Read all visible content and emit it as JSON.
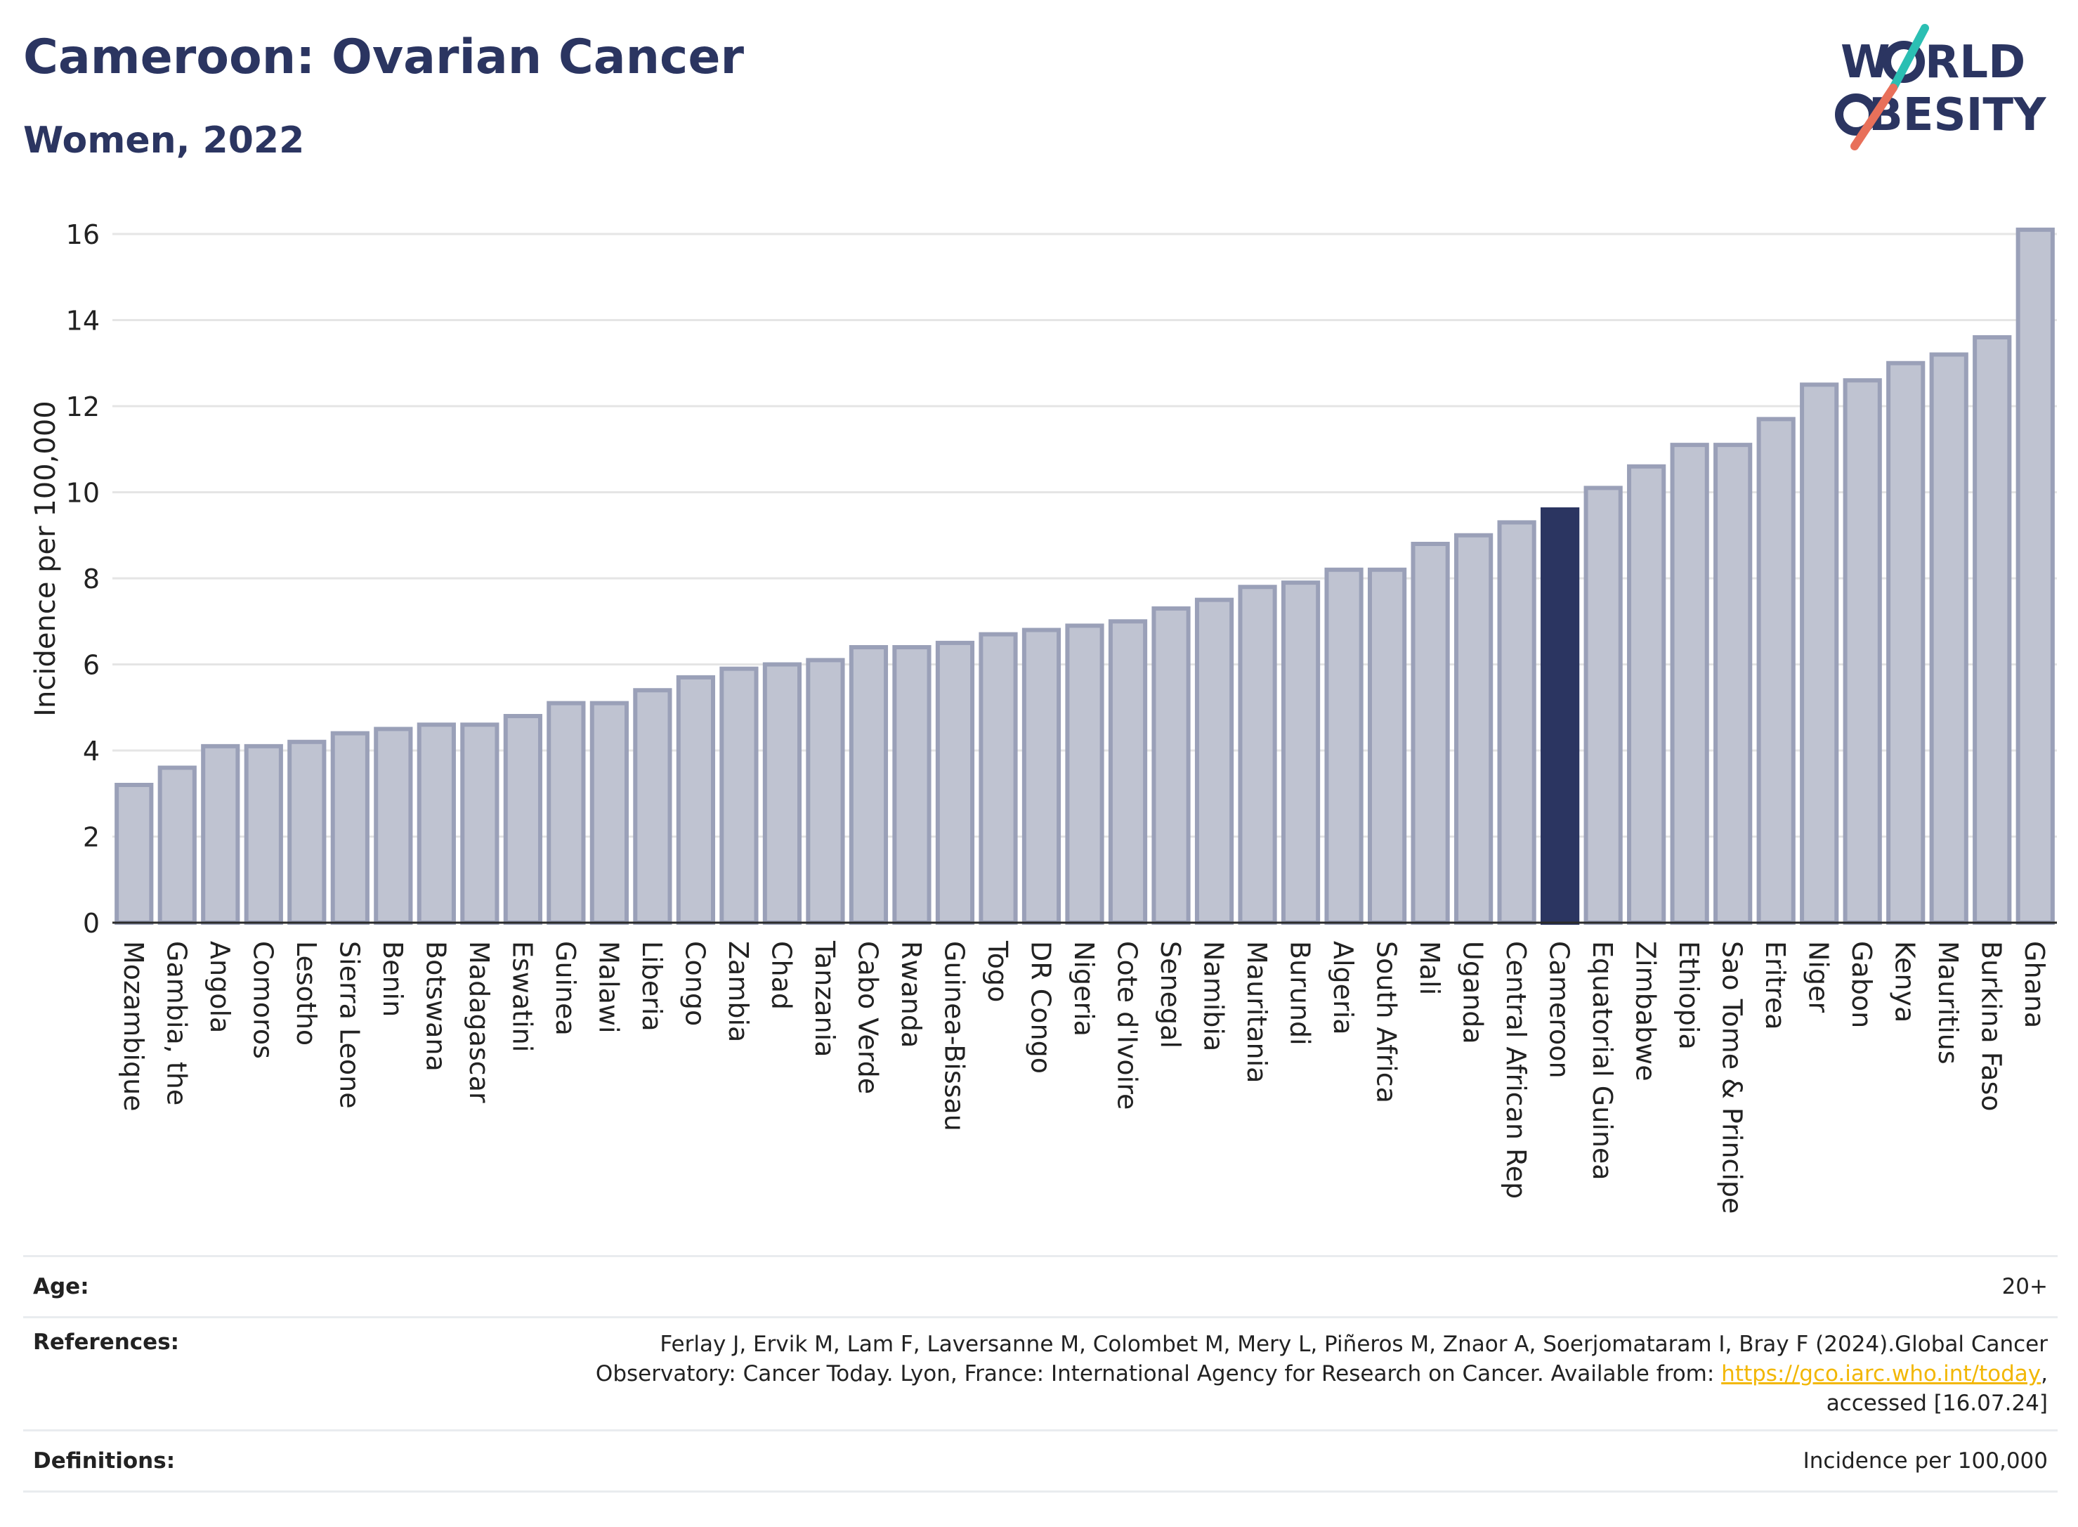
{
  "header": {
    "title": "Cameroon: Ovarian Cancer",
    "subtitle": "Women, 2022"
  },
  "logo": {
    "line1": "W",
    "line1b": "RLD",
    "line2": "BESITY",
    "name": "world-obesity-logo"
  },
  "chart_data": {
    "type": "bar",
    "ylabel": "Incidence per 100,000",
    "ylim": [
      0,
      16.5
    ],
    "yticks": [
      0,
      2,
      4,
      6,
      8,
      10,
      12,
      14,
      16
    ],
    "highlight": "Cameroon",
    "highlight_color": "#2b3561",
    "bar_color": "#bfc3d1",
    "bar_edge_color": "#9aa0b8",
    "categories": [
      "Mozambique",
      "Gambia, the",
      "Angola",
      "Comoros",
      "Lesotho",
      "Sierra Leone",
      "Benin",
      "Botswana",
      "Madagascar",
      "Eswatini",
      "Guinea",
      "Malawi",
      "Liberia",
      "Congo",
      "Zambia",
      "Chad",
      "Tanzania",
      "Cabo Verde",
      "Rwanda",
      "Guinea-Bissau",
      "Togo",
      "DR Congo",
      "Nigeria",
      "Cote d'Ivoire",
      "Senegal",
      "Namibia",
      "Mauritania",
      "Burundi",
      "Algeria",
      "South Africa",
      "Mali",
      "Uganda",
      "Central African Rep",
      "Cameroon",
      "Equatorial Guinea",
      "Zimbabwe",
      "Ethiopia",
      "Sao Tome & Principe",
      "Eritrea",
      "Niger",
      "Gabon",
      "Kenya",
      "Mauritius",
      "Burkina Faso",
      "Ghana"
    ],
    "values": [
      3.2,
      3.6,
      4.1,
      4.1,
      4.2,
      4.4,
      4.5,
      4.6,
      4.6,
      4.8,
      5.1,
      5.1,
      5.4,
      5.7,
      5.9,
      6.0,
      6.1,
      6.4,
      6.4,
      6.5,
      6.7,
      6.8,
      6.9,
      7.0,
      7.3,
      7.5,
      7.8,
      7.9,
      8.2,
      8.2,
      8.8,
      9.0,
      9.3,
      9.6,
      10.1,
      10.6,
      11.1,
      11.1,
      11.7,
      12.5,
      12.6,
      13.0,
      13.2,
      13.6,
      16.1
    ]
  },
  "info": {
    "age_label": "Age:",
    "age_value": "20+",
    "references_label": "References:",
    "references_text1": "Ferlay J, Ervik M, Lam F, Laversanne M, Colombet M, Mery L, Piñeros M, Znaor A, Soerjomataram I, Bray F (2024).Global Cancer",
    "references_text2": "Observatory: Cancer Today. Lyon, France: International Agency for Research on Cancer. Available from: ",
    "references_link": "https://gco.iarc.who.int/today",
    "references_text3": ",",
    "references_text4": "accessed [16.07.24]",
    "definitions_label": "Definitions:",
    "definitions_value": "Incidence per 100,000"
  }
}
